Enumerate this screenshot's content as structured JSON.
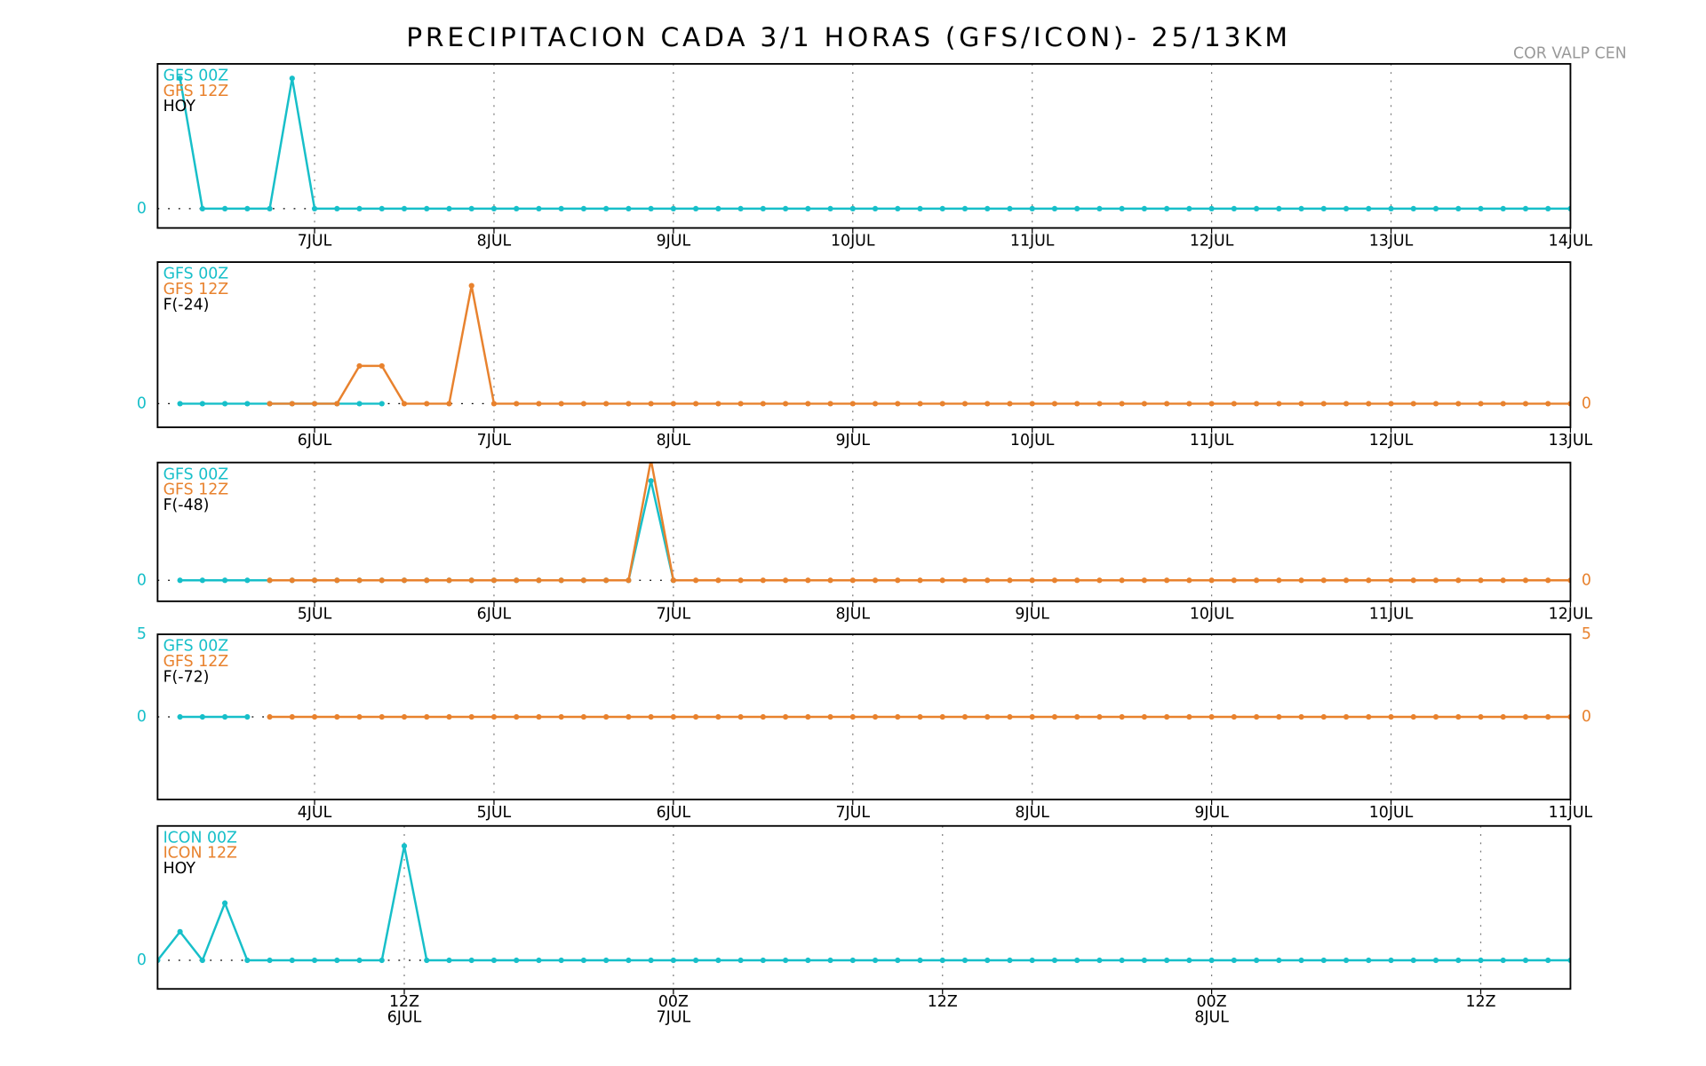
{
  "title": "PRECIPITACION CADA 3/1 HORAS (GFS/ICON)- 25/13KM",
  "station": "COR VALP CEN",
  "chart_data": [
    {
      "type": "line",
      "label": "HOY",
      "xlim": [
        3,
        192
      ],
      "ylim": [
        -0.4,
        3.0
      ],
      "yticks": [
        0
      ],
      "xticks": [
        {
          "value": 24,
          "label": "7JUL"
        },
        {
          "value": 48,
          "label": "8JUL"
        },
        {
          "value": 72,
          "label": "9JUL"
        },
        {
          "value": 96,
          "label": "10JUL"
        },
        {
          "value": 120,
          "label": "11JUL"
        },
        {
          "value": 144,
          "label": "12JUL"
        },
        {
          "value": 168,
          "label": "13JUL"
        },
        {
          "value": 192,
          "label": "14JUL"
        }
      ],
      "series": [
        {
          "name": "GFS 00Z",
          "color": "#17bfc9",
          "x": [
            6,
            9,
            12,
            15,
            18,
            21,
            24,
            27,
            30,
            33,
            36,
            39,
            42,
            45,
            48,
            51,
            54,
            57,
            60,
            63,
            66,
            69,
            72,
            75,
            78,
            81,
            84,
            87,
            90,
            93,
            96,
            99,
            102,
            105,
            108,
            111,
            114,
            117,
            120,
            123,
            126,
            129,
            132,
            135,
            138,
            141,
            144,
            147,
            150,
            153,
            156,
            159,
            162,
            165,
            168,
            171,
            174,
            177,
            180,
            183,
            186,
            189,
            192
          ],
          "values": [
            2.7,
            0,
            0,
            0,
            0,
            2.7,
            0,
            0,
            0,
            0,
            0,
            0,
            0,
            0,
            0,
            0,
            0,
            0,
            0,
            0,
            0,
            0,
            0,
            0,
            0,
            0,
            0,
            0,
            0,
            0,
            0,
            0,
            0,
            0,
            0,
            0,
            0,
            0,
            0,
            0,
            0,
            0,
            0,
            0,
            0,
            0,
            0,
            0,
            0,
            0,
            0,
            0,
            0,
            0,
            0,
            0,
            0,
            0,
            0,
            0,
            0,
            0,
            0
          ]
        },
        {
          "name": "GFS 12Z",
          "color": "#e8822e",
          "x": [],
          "values": []
        }
      ]
    },
    {
      "type": "line",
      "label": "F(-24)",
      "xlim": [
        3,
        192
      ],
      "ylim": [
        -0.5,
        3.0
      ],
      "yticks": [
        0
      ],
      "y2lim": [
        -0.5,
        3.0
      ],
      "y2ticks": [
        0
      ],
      "xticks": [
        {
          "value": 24,
          "label": "6JUL"
        },
        {
          "value": 48,
          "label": "7JUL"
        },
        {
          "value": 72,
          "label": "8JUL"
        },
        {
          "value": 96,
          "label": "9JUL"
        },
        {
          "value": 120,
          "label": "10JUL"
        },
        {
          "value": 144,
          "label": "11JUL"
        },
        {
          "value": 168,
          "label": "12JUL"
        },
        {
          "value": 192,
          "label": "13JUL"
        }
      ],
      "series": [
        {
          "name": "GFS 00Z",
          "color": "#17bfc9",
          "x": [
            6,
            9,
            12,
            15,
            18,
            21,
            24,
            27,
            30,
            33
          ],
          "values": [
            0,
            0,
            0,
            0,
            0,
            0,
            0,
            0,
            0,
            0
          ]
        },
        {
          "name": "GFS 12Z",
          "color": "#e8822e",
          "axis": "y2",
          "x": [
            18,
            21,
            24,
            27,
            30,
            33,
            36,
            39,
            42,
            45,
            48,
            51,
            54,
            57,
            60,
            63,
            66,
            69,
            72,
            75,
            78,
            81,
            84,
            87,
            90,
            93,
            96,
            99,
            102,
            105,
            108,
            111,
            114,
            117,
            120,
            123,
            126,
            129,
            132,
            135,
            138,
            141,
            144,
            147,
            150,
            153,
            156,
            159,
            162,
            165,
            168,
            171,
            174,
            177,
            180,
            183,
            186,
            189,
            192
          ],
          "values": [
            0,
            0,
            0,
            0,
            0.8,
            0.8,
            0,
            0,
            0,
            2.5,
            0,
            0,
            0,
            0,
            0,
            0,
            0,
            0,
            0,
            0,
            0,
            0,
            0,
            0,
            0,
            0,
            0,
            0,
            0,
            0,
            0,
            0,
            0,
            0,
            0,
            0,
            0,
            0,
            0,
            0,
            0,
            0,
            0,
            0,
            0,
            0,
            0,
            0,
            0,
            0,
            0,
            0,
            0,
            0,
            0,
            0,
            0,
            0,
            0
          ]
        }
      ]
    },
    {
      "type": "line",
      "label": "F(-48)",
      "xlim": [
        3,
        192
      ],
      "ylim": [
        -0.4,
        2.25
      ],
      "yticks": [
        0
      ],
      "y2lim": [
        -0.4,
        2.25
      ],
      "y2ticks": [
        0
      ],
      "xticks": [
        {
          "value": 24,
          "label": "5JUL"
        },
        {
          "value": 48,
          "label": "6JUL"
        },
        {
          "value": 72,
          "label": "7JUL"
        },
        {
          "value": 96,
          "label": "8JUL"
        },
        {
          "value": 120,
          "label": "9JUL"
        },
        {
          "value": 144,
          "label": "10JUL"
        },
        {
          "value": 168,
          "label": "11JUL"
        },
        {
          "value": 192,
          "label": "12JUL"
        }
      ],
      "series": [
        {
          "name": "GFS 00Z",
          "color": "#17bfc9",
          "x": [
            6,
            9,
            12,
            15,
            18,
            21,
            24,
            27,
            30,
            33,
            36,
            39,
            42,
            45,
            48,
            51,
            54,
            57,
            60,
            63,
            66,
            69,
            72
          ],
          "values": [
            0,
            0,
            0,
            0,
            0,
            0,
            0,
            0,
            0,
            0,
            0,
            0,
            0,
            0,
            0,
            0,
            0,
            0,
            0,
            0,
            0,
            1.9,
            0
          ]
        },
        {
          "name": "GFS 12Z",
          "color": "#e8822e",
          "axis": "y2",
          "x": [
            18,
            21,
            24,
            27,
            30,
            33,
            36,
            39,
            42,
            45,
            48,
            51,
            54,
            57,
            60,
            63,
            66,
            69,
            72,
            75,
            78,
            81,
            84,
            87,
            90,
            93,
            96,
            99,
            102,
            105,
            108,
            111,
            114,
            117,
            120,
            123,
            126,
            129,
            132,
            135,
            138,
            141,
            144,
            147,
            150,
            153,
            156,
            159,
            162,
            165,
            168,
            171,
            174,
            177,
            180,
            183,
            186,
            189,
            192
          ],
          "values": [
            0,
            0,
            0,
            0,
            0,
            0,
            0,
            0,
            0,
            0,
            0,
            0,
            0,
            0,
            0,
            0,
            0,
            2.3,
            0,
            0,
            0,
            0,
            0,
            0,
            0,
            0,
            0,
            0,
            0,
            0,
            0,
            0,
            0,
            0,
            0,
            0,
            0,
            0,
            0,
            0,
            0,
            0,
            0,
            0,
            0,
            0,
            0,
            0,
            0,
            0,
            0,
            0,
            0,
            0,
            0,
            0,
            0,
            0,
            0
          ]
        }
      ]
    },
    {
      "type": "line",
      "label": "F(-72)",
      "xlim": [
        3,
        192
      ],
      "ylim": [
        -5,
        5
      ],
      "yticks": [
        0,
        5
      ],
      "y2lim": [
        -5,
        5
      ],
      "y2ticks": [
        0,
        5
      ],
      "xticks": [
        {
          "value": 24,
          "label": "4JUL"
        },
        {
          "value": 48,
          "label": "5JUL"
        },
        {
          "value": 72,
          "label": "6JUL"
        },
        {
          "value": 96,
          "label": "7JUL"
        },
        {
          "value": 120,
          "label": "8JUL"
        },
        {
          "value": 144,
          "label": "9JUL"
        },
        {
          "value": 168,
          "label": "10JUL"
        },
        {
          "value": 192,
          "label": "11JUL"
        }
      ],
      "series": [
        {
          "name": "GFS 00Z",
          "color": "#17bfc9",
          "x": [
            6,
            9,
            12,
            15
          ],
          "values": [
            0,
            0,
            0,
            0
          ]
        },
        {
          "name": "GFS 12Z",
          "color": "#e8822e",
          "axis": "y2",
          "x": [
            18,
            21,
            24,
            27,
            30,
            33,
            36,
            39,
            42,
            45,
            48,
            51,
            54,
            57,
            60,
            63,
            66,
            69,
            72,
            75,
            78,
            81,
            84,
            87,
            90,
            93,
            96,
            99,
            102,
            105,
            108,
            111,
            114,
            117,
            120,
            123,
            126,
            129,
            132,
            135,
            138,
            141,
            144,
            147,
            150,
            153,
            156,
            159,
            162,
            165,
            168,
            171,
            174,
            177,
            180,
            183,
            186,
            189,
            192
          ],
          "values": [
            0,
            0,
            0,
            0,
            0,
            0,
            0,
            0,
            0,
            0,
            0,
            0,
            0,
            0,
            0,
            0,
            0,
            0,
            0,
            0,
            0,
            0,
            0,
            0,
            0,
            0,
            0,
            0,
            0,
            0,
            0,
            0,
            0,
            0,
            0,
            0,
            0,
            0,
            0,
            0,
            0,
            0,
            0,
            0,
            0,
            0,
            0,
            0,
            0,
            0,
            0,
            0,
            0,
            0,
            0,
            0,
            0,
            0,
            0
          ]
        }
      ]
    },
    {
      "type": "line",
      "label": "HOY",
      "xlim": [
        1,
        64
      ],
      "ylim": [
        -0.5,
        2.35
      ],
      "yticks": [
        0
      ],
      "xticks": [
        {
          "value": 12,
          "label": "12Z",
          "date": "6JUL"
        },
        {
          "value": 24,
          "label": "00Z",
          "date": "7JUL"
        },
        {
          "value": 36,
          "label": "12Z"
        },
        {
          "value": 48,
          "label": "00Z",
          "date": "8JUL"
        },
        {
          "value": 60,
          "label": "12Z"
        }
      ],
      "series": [
        {
          "name": "ICON 00Z",
          "color": "#17bfc9",
          "x": [
            1,
            2,
            3,
            4,
            5,
            6,
            7,
            8,
            9,
            10,
            11,
            12,
            13,
            14,
            15,
            16,
            17,
            18,
            19,
            20,
            21,
            22,
            23,
            24,
            25,
            26,
            27,
            28,
            29,
            30,
            31,
            32,
            33,
            34,
            35,
            36,
            37,
            38,
            39,
            40,
            41,
            42,
            43,
            44,
            45,
            46,
            47,
            48,
            49,
            50,
            51,
            52,
            53,
            54,
            55,
            56,
            57,
            58,
            59,
            60,
            61,
            62,
            63,
            64
          ],
          "values": [
            0,
            0.5,
            0,
            1.0,
            0,
            0,
            0,
            0,
            0,
            0,
            0,
            2.0,
            0,
            0,
            0,
            0,
            0,
            0,
            0,
            0,
            0,
            0,
            0,
            0,
            0,
            0,
            0,
            0,
            0,
            0,
            0,
            0,
            0,
            0,
            0,
            0,
            0,
            0,
            0,
            0,
            0,
            0,
            0,
            0,
            0,
            0,
            0,
            0,
            0,
            0,
            0,
            0,
            0,
            0,
            0,
            0,
            0,
            0,
            0,
            0,
            0,
            0,
            0,
            0
          ]
        },
        {
          "name": "ICON 12Z",
          "color": "#e8822e",
          "x": [],
          "values": []
        }
      ]
    }
  ]
}
